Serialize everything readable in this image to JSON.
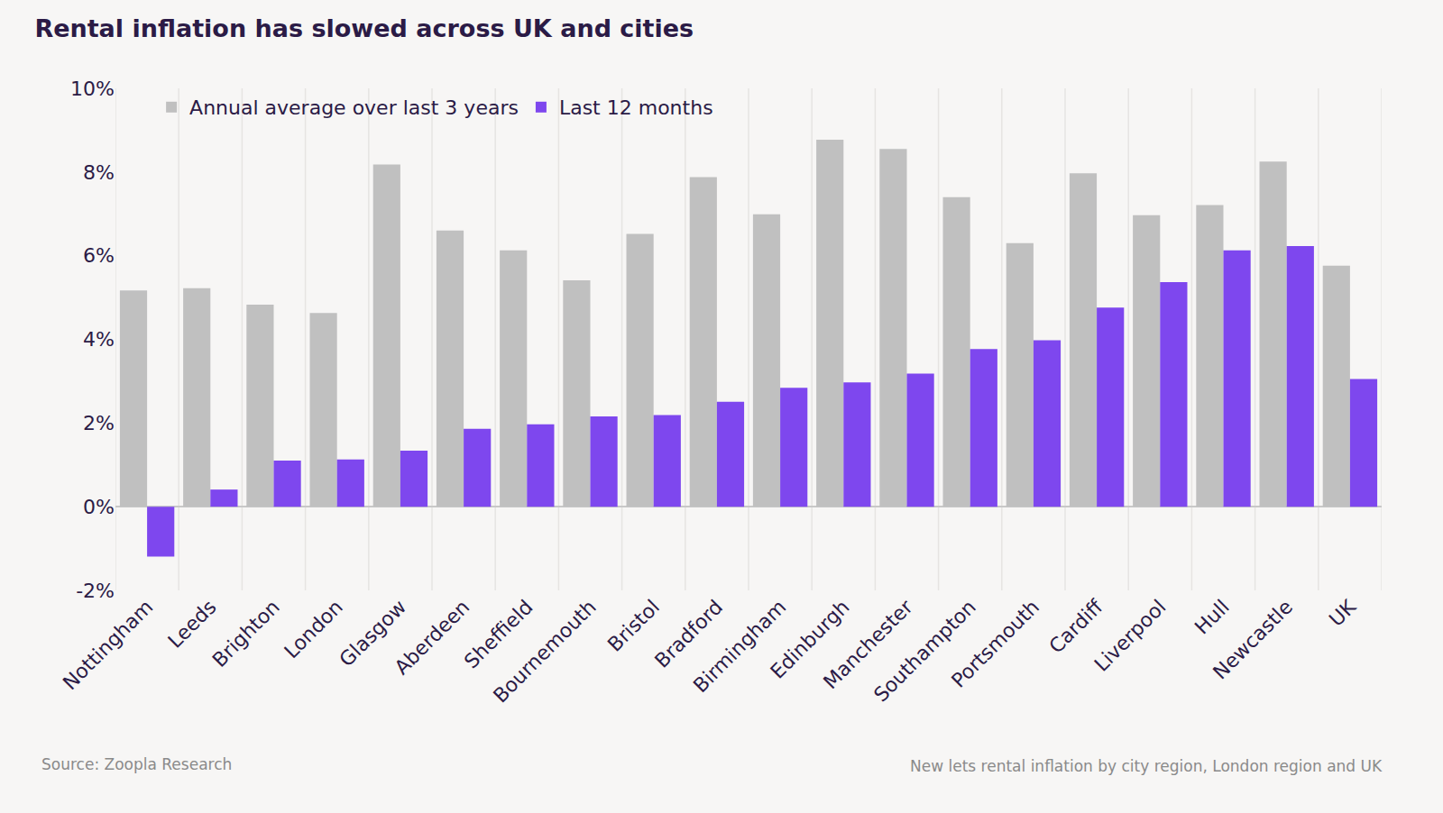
{
  "chart_data": {
    "type": "bar",
    "title": "Rental inflation has slowed across UK and cities",
    "annotations": [
      "Source: Zoopla Research",
      "New lets rental inflation by city region, London region and UK"
    ],
    "categories": [
      "Nottingham",
      "Leeds",
      "Brighton",
      "London",
      "Glasgow",
      "Aberdeen",
      "Sheffield",
      "Bournemouth",
      "Bristol",
      "Bradford",
      "Birmingham",
      "Edinburgh",
      "Manchester",
      "Southampton",
      "Portsmouth",
      "Cardiff",
      "Liverpool",
      "Hull",
      "Newcastle",
      "UK"
    ],
    "series": [
      {
        "name": "Annual average over last 3 years",
        "color": "#c0c0c0",
        "values": [
          5.17,
          5.22,
          4.83,
          4.63,
          8.18,
          6.6,
          6.13,
          5.41,
          6.52,
          7.88,
          6.99,
          8.77,
          8.55,
          7.4,
          6.3,
          7.97,
          6.97,
          7.21,
          8.25,
          5.76
        ]
      },
      {
        "name": "Last 12 months",
        "color": "#7e47ee",
        "values": [
          -1.19,
          0.41,
          1.1,
          1.13,
          1.34,
          1.86,
          1.97,
          2.16,
          2.19,
          2.51,
          2.84,
          2.97,
          3.18,
          3.77,
          3.98,
          4.76,
          5.37,
          6.13,
          6.23,
          3.05
        ]
      }
    ],
    "ylim": [
      -2,
      10
    ],
    "yticks": [
      {
        "value": -2,
        "label": "-2%"
      },
      {
        "value": 0,
        "label": "0%"
      },
      {
        "value": 2,
        "label": "2%"
      },
      {
        "value": 4,
        "label": "4%"
      },
      {
        "value": 6,
        "label": "6%"
      },
      {
        "value": 8,
        "label": "8%"
      },
      {
        "value": 10,
        "label": "10%"
      }
    ],
    "grid": true,
    "legend": "top-left"
  }
}
